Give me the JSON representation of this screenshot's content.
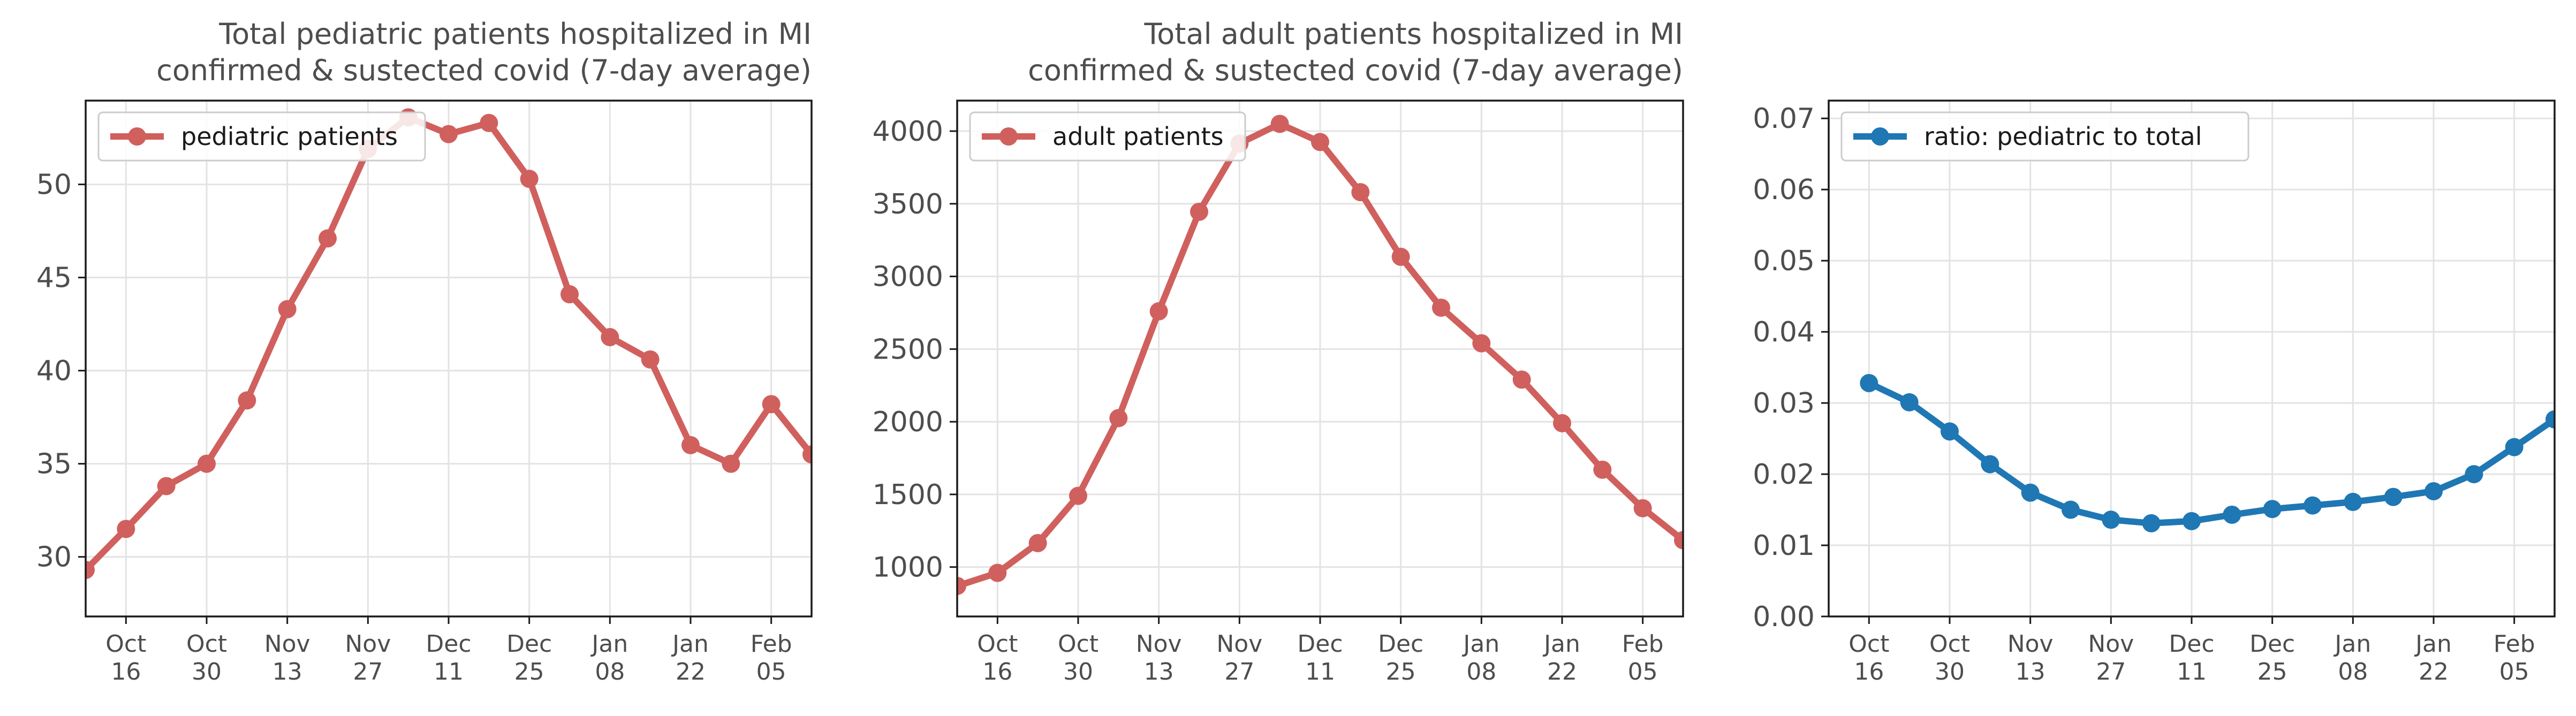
{
  "chart_data": [
    {
      "type": "line",
      "title": "Total pediatric patients hospitalized in MI\nconfirmed & sustected covid (7-day average)",
      "xlabel": "",
      "ylabel": "",
      "x_tick_labels": [
        "Oct\n16",
        "Oct\n30",
        "Nov\n13",
        "Nov\n27",
        "Dec\n11",
        "Dec\n25",
        "Jan\n08",
        "Jan\n22",
        "Feb\n05"
      ],
      "y_tick_labels": [
        "30",
        "35",
        "40",
        "45",
        "50"
      ],
      "y_ticks": [
        30,
        35,
        40,
        45,
        50
      ],
      "ylim": [
        26.8,
        54.5
      ],
      "grid": true,
      "legend": "top-left",
      "color": "#d0605e",
      "series": [
        {
          "name": "pediatric patients",
          "x": [
            "2022-10-09",
            "2022-10-16",
            "2022-10-23",
            "2022-10-30",
            "2022-11-06",
            "2022-11-13",
            "2022-11-20",
            "2022-11-27",
            "2022-12-04",
            "2022-12-11",
            "2022-12-18",
            "2022-12-25",
            "2023-01-01",
            "2023-01-08",
            "2023-01-15",
            "2023-01-22",
            "2023-01-29",
            "2023-02-05",
            "2023-02-12"
          ],
          "values": [
            29.3,
            31.5,
            33.8,
            35.0,
            38.4,
            43.3,
            47.1,
            51.9,
            53.6,
            52.7,
            53.3,
            50.3,
            44.1,
            41.8,
            40.6,
            36.0,
            35.0,
            38.2,
            35.5
          ]
        }
      ]
    },
    {
      "type": "line",
      "title": "Total adult patients hospitalized in MI\nconfirmed & sustected covid (7-day average)",
      "xlabel": "",
      "ylabel": "",
      "x_tick_labels": [
        "Oct\n16",
        "Oct\n30",
        "Nov\n13",
        "Nov\n27",
        "Dec\n11",
        "Dec\n25",
        "Jan\n08",
        "Jan\n22",
        "Feb\n05"
      ],
      "y_tick_labels": [
        "1000",
        "1500",
        "2000",
        "2500",
        "3000",
        "3500",
        "4000"
      ],
      "y_ticks": [
        1000,
        1500,
        2000,
        2500,
        3000,
        3500,
        4000
      ],
      "ylim": [
        660,
        4210
      ],
      "grid": true,
      "legend": "top-left",
      "color": "#d0605e",
      "series": [
        {
          "name": "adult patients",
          "x": [
            "2022-10-09",
            "2022-10-16",
            "2022-10-23",
            "2022-10-30",
            "2022-11-06",
            "2022-11-13",
            "2022-11-20",
            "2022-11-27",
            "2022-12-04",
            "2022-12-11",
            "2022-12-18",
            "2022-12-25",
            "2023-01-01",
            "2023-01-08",
            "2023-01-15",
            "2023-01-22",
            "2023-01-29",
            "2023-02-05",
            "2023-02-12"
          ],
          "values": [
            870,
            960,
            1165,
            1490,
            2025,
            2760,
            3445,
            3915,
            4050,
            3925,
            3580,
            3135,
            2785,
            2540,
            2290,
            1990,
            1670,
            1405,
            1185
          ]
        }
      ]
    },
    {
      "type": "line",
      "title": "",
      "xlabel": "",
      "ylabel": "",
      "x_tick_labels": [
        "Oct\n16",
        "Oct\n30",
        "Nov\n13",
        "Nov\n27",
        "Dec\n11",
        "Dec\n25",
        "Jan\n08",
        "Jan\n22",
        "Feb\n05"
      ],
      "y_tick_labels": [
        "0.00",
        "0.01",
        "0.02",
        "0.03",
        "0.04",
        "0.05",
        "0.06",
        "0.07"
      ],
      "y_ticks": [
        0,
        0.01,
        0.02,
        0.03,
        0.04,
        0.05,
        0.06,
        0.07
      ],
      "ylim": [
        0,
        0.0725
      ],
      "grid": true,
      "legend": "top-left",
      "color": "#1f77b4",
      "series": [
        {
          "name": "ratio: pediatric to total",
          "x": [
            "2022-10-16",
            "2022-10-23",
            "2022-10-30",
            "2022-11-06",
            "2022-11-13",
            "2022-11-20",
            "2022-11-27",
            "2022-12-04",
            "2022-12-11",
            "2022-12-18",
            "2022-12-25",
            "2023-01-01",
            "2023-01-08",
            "2023-01-15",
            "2023-01-22",
            "2023-01-29",
            "2023-02-05",
            "2023-02-12"
          ],
          "values": [
            0.0328,
            0.0301,
            0.026,
            0.0214,
            0.0174,
            0.015,
            0.0136,
            0.0131,
            0.0134,
            0.0143,
            0.0151,
            0.0156,
            0.0161,
            0.0168,
            0.0176,
            0.02,
            0.0238,
            0.0277
          ]
        }
      ]
    }
  ]
}
